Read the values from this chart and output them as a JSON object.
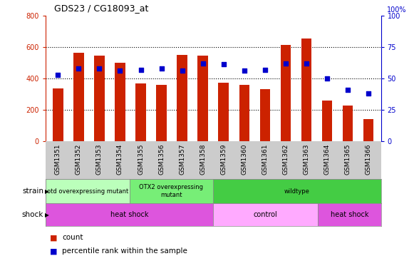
{
  "title": "GDS23 / CG18093_at",
  "samples": [
    "GSM1351",
    "GSM1352",
    "GSM1353",
    "GSM1354",
    "GSM1355",
    "GSM1356",
    "GSM1357",
    "GSM1358",
    "GSM1359",
    "GSM1360",
    "GSM1361",
    "GSM1362",
    "GSM1363",
    "GSM1364",
    "GSM1365",
    "GSM1366"
  ],
  "counts": [
    335,
    565,
    545,
    500,
    365,
    360,
    550,
    545,
    370,
    360,
    330,
    615,
    655,
    258,
    228,
    140
  ],
  "percentile": [
    53,
    58,
    58,
    56,
    57,
    58,
    56,
    62,
    61,
    56,
    57,
    62,
    62,
    50,
    41,
    38
  ],
  "bar_color": "#cc2200",
  "dot_color": "#0000cc",
  "ylim_left": [
    0,
    800
  ],
  "ylim_right": [
    0,
    100
  ],
  "yticks_left": [
    0,
    200,
    400,
    600,
    800
  ],
  "yticks_right": [
    0,
    25,
    50,
    75,
    100
  ],
  "strain_groups": [
    {
      "label": "otd overexpressing mutant",
      "start": 0,
      "end": 4,
      "color": "#bbffbb"
    },
    {
      "label": "OTX2 overexpressing\nmutant",
      "start": 4,
      "end": 8,
      "color": "#77ee77"
    },
    {
      "label": "wildtype",
      "start": 8,
      "end": 16,
      "color": "#44cc44"
    }
  ],
  "shock_groups": [
    {
      "label": "heat shock",
      "start": 0,
      "end": 8,
      "color": "#dd55dd"
    },
    {
      "label": "control",
      "start": 8,
      "end": 13,
      "color": "#ffaaff"
    },
    {
      "label": "heat shock",
      "start": 13,
      "end": 16,
      "color": "#dd55dd"
    }
  ],
  "strain_label": "strain",
  "shock_label": "shock",
  "legend_count_label": "count",
  "legend_percentile_label": "percentile rank within the sample",
  "background_color": "#ffffff",
  "left_axis_color": "#cc2200",
  "right_axis_color": "#0000cc"
}
